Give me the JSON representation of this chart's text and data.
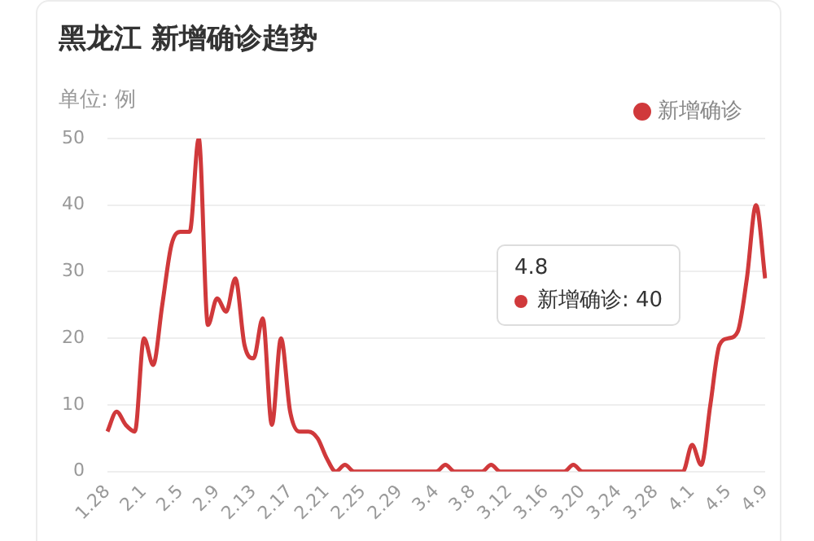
{
  "chart_data": {
    "type": "line",
    "title": "黑龙江 新增确诊趋势",
    "subtitle": "单位: 例",
    "categories": [
      "1.28",
      null,
      null,
      null,
      "2.1",
      null,
      null,
      null,
      "2.5",
      null,
      null,
      null,
      "2.9",
      null,
      null,
      null,
      "2.13",
      null,
      null,
      null,
      "2.17",
      null,
      null,
      null,
      "2.21",
      null,
      null,
      null,
      "2.25",
      null,
      null,
      null,
      "2.29",
      null,
      null,
      null,
      "3.4",
      null,
      null,
      null,
      "3.8",
      null,
      null,
      null,
      "3.12",
      null,
      null,
      null,
      "3.16",
      null,
      null,
      null,
      "3.20",
      null,
      null,
      null,
      "3.24",
      null,
      null,
      null,
      "3.28",
      null,
      null,
      null,
      "4.1",
      null,
      null,
      null,
      "4.5",
      null,
      null,
      null,
      "4.9"
    ],
    "series": [
      {
        "name": "新增确诊",
        "color": "#d0393b",
        "values": [
          6,
          9,
          7,
          6,
          20,
          16,
          25,
          34,
          36,
          36,
          50,
          22,
          26,
          24,
          29,
          19,
          17,
          23,
          7,
          20,
          9,
          6,
          6,
          5,
          2,
          0,
          1,
          0,
          0,
          0,
          0,
          0,
          0,
          0,
          0,
          0,
          0,
          1,
          0,
          0,
          0,
          0,
          1,
          0,
          0,
          0,
          0,
          0,
          0,
          0,
          0,
          1,
          0,
          0,
          0,
          0,
          0,
          0,
          0,
          0,
          0,
          0,
          0,
          0,
          4,
          1,
          10,
          19,
          20,
          21,
          29,
          40,
          29
        ]
      }
    ],
    "ylim": [
      0,
      50
    ],
    "yticks": [
      0,
      10,
      20,
      30,
      40,
      50
    ],
    "grid": "y",
    "legend": "top right",
    "marker": "none",
    "line_style": "solid",
    "annotations": [
      "4.8",
      "新增确诊: 40"
    ]
  }
}
